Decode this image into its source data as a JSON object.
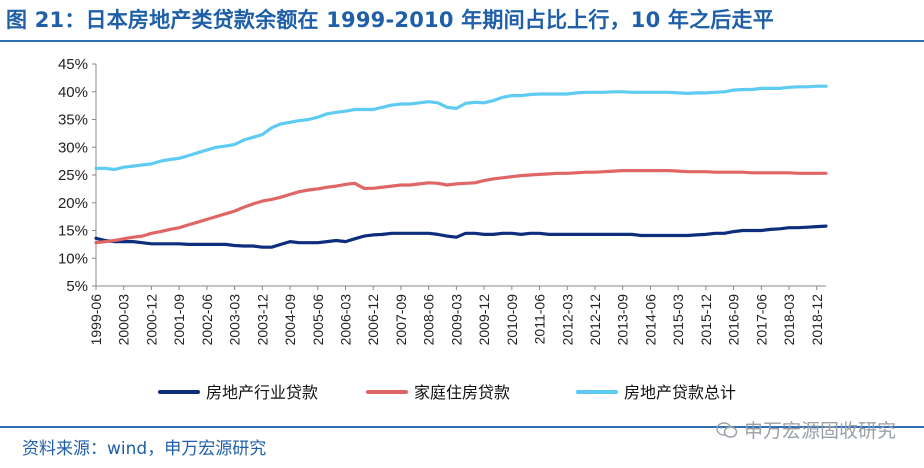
{
  "header": {
    "title": "图 21：日本房地产类贷款余额在 1999-2010 年期间占比上行，10 年之后走平"
  },
  "footer": {
    "source": "资料来源：wind，申万宏源研究",
    "watermark": "申万宏源固收研究"
  },
  "chart_data": {
    "type": "line",
    "title": "",
    "xlabel": "",
    "ylabel": "",
    "ylim": [
      5,
      45
    ],
    "yticks": [
      "45%",
      "40%",
      "35%",
      "30%",
      "25%",
      "20%",
      "15%",
      "10%",
      "5%"
    ],
    "y_tick_values": [
      45,
      40,
      35,
      30,
      25,
      20,
      15,
      10,
      5
    ],
    "legend_position": "bottom",
    "grid": false,
    "x_tick_labels": [
      "1999-06",
      "2000-03",
      "2000-12",
      "2001-09",
      "2002-06",
      "2003-03",
      "2003-12",
      "2004-09",
      "2005-06",
      "2006-03",
      "2006-12",
      "2007-09",
      "2008-06",
      "2009-03",
      "2009-12",
      "2010-09",
      "2011-06",
      "2012-03",
      "2012-12",
      "2013-09",
      "2014-06",
      "2015-03",
      "2015-12",
      "2016-09",
      "2017-06",
      "2018-03",
      "2018-12"
    ],
    "x": [
      "1999-06",
      "1999-09",
      "1999-12",
      "2000-03",
      "2000-06",
      "2000-09",
      "2000-12",
      "2001-03",
      "2001-06",
      "2001-09",
      "2001-12",
      "2002-03",
      "2002-06",
      "2002-09",
      "2002-12",
      "2003-03",
      "2003-06",
      "2003-09",
      "2003-12",
      "2004-03",
      "2004-06",
      "2004-09",
      "2004-12",
      "2005-03",
      "2005-06",
      "2005-09",
      "2005-12",
      "2006-03",
      "2006-06",
      "2006-09",
      "2006-12",
      "2007-03",
      "2007-06",
      "2007-09",
      "2007-12",
      "2008-03",
      "2008-06",
      "2008-09",
      "2008-12",
      "2009-03",
      "2009-06",
      "2009-09",
      "2009-12",
      "2010-03",
      "2010-06",
      "2010-09",
      "2010-12",
      "2011-03",
      "2011-06",
      "2011-09",
      "2011-12",
      "2012-03",
      "2012-06",
      "2012-09",
      "2012-12",
      "2013-03",
      "2013-06",
      "2013-09",
      "2013-12",
      "2014-03",
      "2014-06",
      "2014-09",
      "2014-12",
      "2015-03",
      "2015-06",
      "2015-09",
      "2015-12",
      "2016-03",
      "2016-06",
      "2016-09",
      "2016-12",
      "2017-03",
      "2017-06",
      "2017-09",
      "2017-12",
      "2018-03",
      "2018-06",
      "2018-09",
      "2018-12",
      "2019-03"
    ],
    "series": [
      {
        "name": "房地产行业贷款",
        "color": "#0d2e7d",
        "values": [
          13.6,
          13.2,
          13.0,
          13.0,
          13.0,
          12.8,
          12.6,
          12.6,
          12.6,
          12.6,
          12.5,
          12.5,
          12.5,
          12.5,
          12.5,
          12.3,
          12.2,
          12.2,
          12.0,
          12.0,
          12.5,
          13.0,
          12.8,
          12.8,
          12.8,
          13.0,
          13.2,
          13.0,
          13.5,
          14.0,
          14.2,
          14.3,
          14.5,
          14.5,
          14.5,
          14.5,
          14.5,
          14.3,
          14.0,
          13.8,
          14.5,
          14.5,
          14.3,
          14.3,
          14.5,
          14.5,
          14.3,
          14.5,
          14.5,
          14.3,
          14.3,
          14.3,
          14.3,
          14.3,
          14.3,
          14.3,
          14.3,
          14.3,
          14.3,
          14.1,
          14.1,
          14.1,
          14.1,
          14.1,
          14.1,
          14.2,
          14.3,
          14.5,
          14.5,
          14.8,
          15.0,
          15.0,
          15.0,
          15.2,
          15.3,
          15.5,
          15.5,
          15.6,
          15.7,
          15.8
        ]
      },
      {
        "name": "家庭住房贷款",
        "color": "#e06666",
        "values": [
          12.8,
          13.0,
          13.2,
          13.5,
          13.8,
          14.0,
          14.5,
          14.8,
          15.2,
          15.5,
          16.0,
          16.5,
          17.0,
          17.5,
          18.0,
          18.5,
          19.2,
          19.8,
          20.3,
          20.6,
          21.0,
          21.5,
          22.0,
          22.3,
          22.5,
          22.8,
          23.0,
          23.3,
          23.5,
          22.6,
          22.6,
          22.8,
          23.0,
          23.2,
          23.2,
          23.4,
          23.6,
          23.5,
          23.2,
          23.4,
          23.5,
          23.6,
          24.0,
          24.3,
          24.5,
          24.7,
          24.9,
          25.0,
          25.1,
          25.2,
          25.3,
          25.3,
          25.4,
          25.5,
          25.5,
          25.6,
          25.7,
          25.8,
          25.8,
          25.8,
          25.8,
          25.8,
          25.8,
          25.7,
          25.6,
          25.6,
          25.6,
          25.5,
          25.5,
          25.5,
          25.5,
          25.4,
          25.4,
          25.4,
          25.4,
          25.4,
          25.3,
          25.3,
          25.3,
          25.3
        ]
      },
      {
        "name": "房地产贷款总计",
        "color": "#5ecbf2",
        "values": [
          26.2,
          26.2,
          26.0,
          26.4,
          26.6,
          26.8,
          27.0,
          27.5,
          27.8,
          28.0,
          28.5,
          29.0,
          29.5,
          30.0,
          30.2,
          30.5,
          31.3,
          31.8,
          32.3,
          33.5,
          34.2,
          34.5,
          34.8,
          35.0,
          35.4,
          36.0,
          36.3,
          36.5,
          36.8,
          36.8,
          36.8,
          37.2,
          37.6,
          37.8,
          37.8,
          38.0,
          38.2,
          38.0,
          37.2,
          37.0,
          37.9,
          38.1,
          38.0,
          38.4,
          39.0,
          39.3,
          39.3,
          39.5,
          39.6,
          39.6,
          39.6,
          39.6,
          39.8,
          39.9,
          39.9,
          39.9,
          40.0,
          40.0,
          39.9,
          39.9,
          39.9,
          39.9,
          39.9,
          39.8,
          39.7,
          39.8,
          39.8,
          39.9,
          40.0,
          40.3,
          40.4,
          40.4,
          40.6,
          40.6,
          40.6,
          40.8,
          40.9,
          40.9,
          41.0,
          41.0
        ]
      }
    ]
  }
}
